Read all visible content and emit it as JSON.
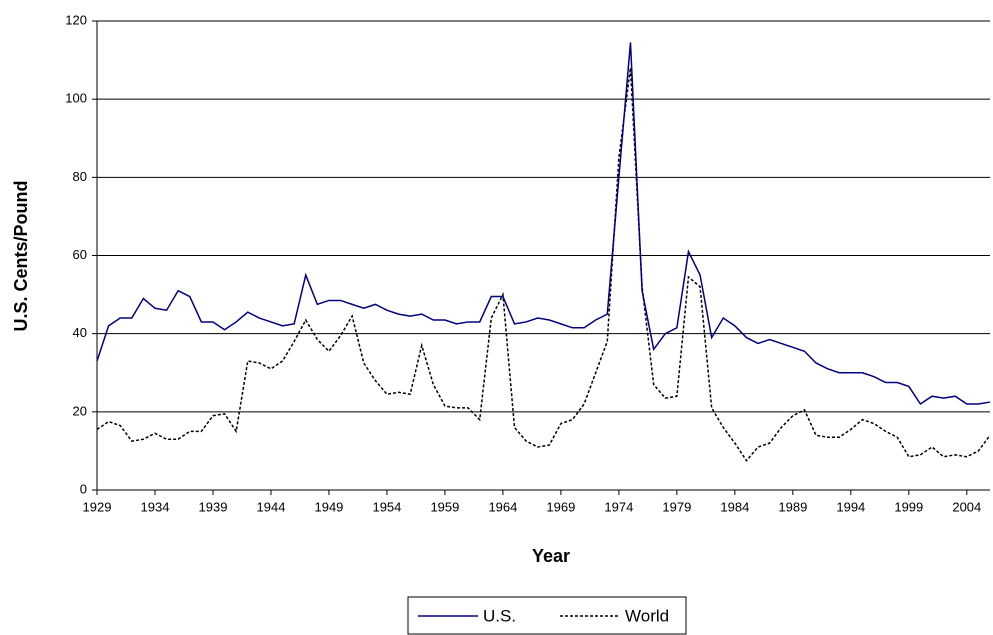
{
  "chart_data": {
    "type": "line",
    "y_label": "U.S. Cents/Pound",
    "x_label": "Year",
    "x": [
      1929,
      1930,
      1931,
      1932,
      1933,
      1934,
      1935,
      1936,
      1937,
      1938,
      1939,
      1940,
      1941,
      1942,
      1943,
      1944,
      1945,
      1946,
      1947,
      1948,
      1949,
      1950,
      1951,
      1952,
      1953,
      1954,
      1955,
      1956,
      1957,
      1958,
      1959,
      1960,
      1961,
      1962,
      1963,
      1964,
      1965,
      1966,
      1967,
      1968,
      1969,
      1970,
      1971,
      1972,
      1973,
      1974,
      1975,
      1976,
      1977,
      1978,
      1979,
      1980,
      1981,
      1982,
      1983,
      1984,
      1985,
      1986,
      1987,
      1988,
      1989,
      1990,
      1991,
      1992,
      1993,
      1994,
      1995,
      1996,
      1997,
      1998,
      1999,
      2000,
      2001,
      2002,
      2003,
      2004,
      2005,
      2006
    ],
    "series": [
      {
        "name": "U.S.",
        "color": "#000080",
        "linestyle": "solid",
        "values": [
          33,
          42,
          44,
          44,
          49,
          46.5,
          46,
          51,
          49.5,
          43,
          43,
          41,
          43,
          45.5,
          44,
          43,
          42,
          42.5,
          55,
          47.5,
          48.5,
          48.5,
          47.5,
          46.5,
          47.5,
          46,
          45,
          44.5,
          45,
          43.5,
          43.5,
          42.5,
          43,
          43,
          49.5,
          49.5,
          42.5,
          43,
          44,
          43.5,
          42.5,
          41.5,
          41.5,
          43.5,
          45,
          80,
          114.5,
          51,
          36,
          40,
          41.5,
          61,
          55,
          39,
          44,
          42,
          39,
          37.5,
          38.5,
          37.5,
          36.5,
          35.5,
          32.5,
          31,
          30,
          30,
          30,
          29,
          27.5,
          27.5,
          26.5,
          22,
          24,
          23.5,
          24,
          22,
          22,
          22.5
        ]
      },
      {
        "name": "World",
        "color": "#000000",
        "linestyle": "dashed",
        "values": [
          15.5,
          17.5,
          16.5,
          12.5,
          13,
          14.5,
          13,
          13,
          15,
          15,
          19,
          19.5,
          15,
          33,
          32.5,
          31,
          33,
          38,
          43.5,
          38.5,
          35.5,
          39.5,
          44.5,
          32.5,
          28,
          24.5,
          25,
          24.5,
          37,
          27,
          21.5,
          21,
          21,
          18,
          44,
          50,
          16,
          12.5,
          11,
          11.5,
          17,
          18,
          22,
          30,
          38,
          85,
          108,
          52,
          27,
          23.5,
          24,
          54.5,
          52,
          21,
          16,
          12,
          7.5,
          11,
          12,
          16,
          19,
          20.5,
          14,
          13.5,
          13.5,
          15.5,
          18,
          17,
          15,
          13.5,
          8.5,
          9,
          11,
          8.5,
          9,
          8.5,
          10,
          14
        ]
      }
    ],
    "xlim": [
      1929,
      2006
    ],
    "xticks": [
      1929,
      1934,
      1939,
      1944,
      1949,
      1954,
      1959,
      1964,
      1969,
      1974,
      1979,
      1984,
      1989,
      1994,
      1999,
      2004
    ],
    "ylim": [
      0,
      120
    ],
    "yticks": [
      0,
      20,
      40,
      60,
      80,
      100,
      120
    ],
    "grid": true,
    "legend": "bottom"
  }
}
